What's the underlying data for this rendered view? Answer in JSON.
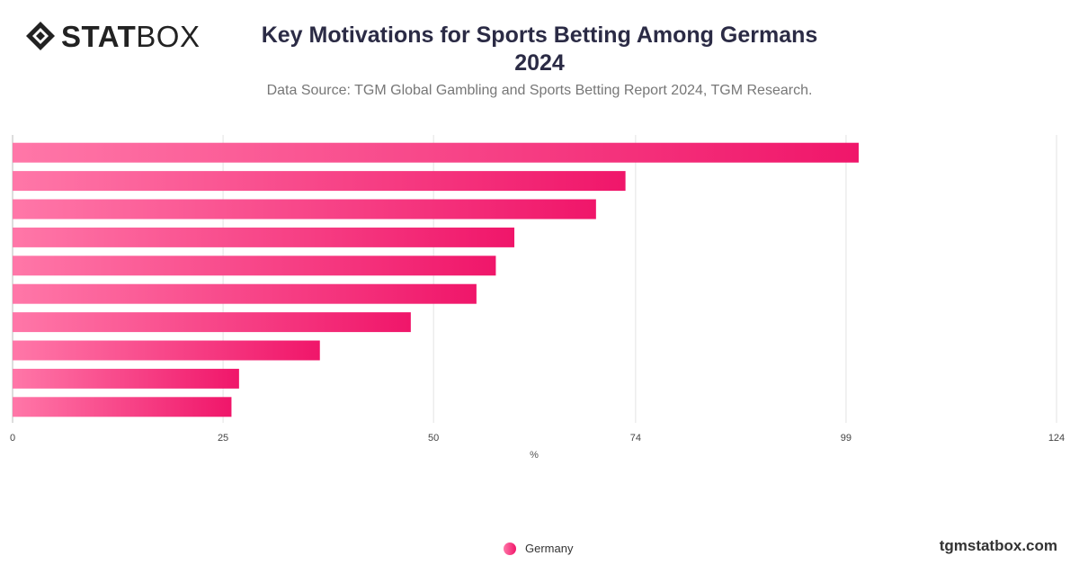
{
  "brand": {
    "logo_bold": "STAT",
    "logo_light": "BOX",
    "footer": "tgmstatbox.com"
  },
  "header": {
    "title_line1": "Key Motivations for Sports Betting Among Germans",
    "title_line2": "2024",
    "subtitle": "Data Source: TGM Global Gambling and Sports Betting Report 2024, TGM Research."
  },
  "legend": {
    "label": "Germany"
  },
  "colors": {
    "bar_start": "#ff77a8",
    "bar_end": "#f0166a",
    "grid": "#e3e3e3"
  },
  "chart_data": {
    "type": "bar",
    "orientation": "horizontal",
    "title": "Key Motivations for Sports Betting Among Germans 2024",
    "xlabel": "%",
    "ylabel": "",
    "xlim": [
      0,
      124
    ],
    "xticks": [
      0,
      25,
      50,
      74,
      99,
      124
    ],
    "grid": true,
    "legend_position": "bottom",
    "categories": [
      "",
      "",
      "",
      "",
      "",
      "",
      "",
      "",
      "",
      ""
    ],
    "series": [
      {
        "name": "Germany",
        "values": [
          100.5,
          72.8,
          69.3,
          59.6,
          57.4,
          55.1,
          47.3,
          36.5,
          26.9,
          26.0
        ]
      }
    ]
  }
}
